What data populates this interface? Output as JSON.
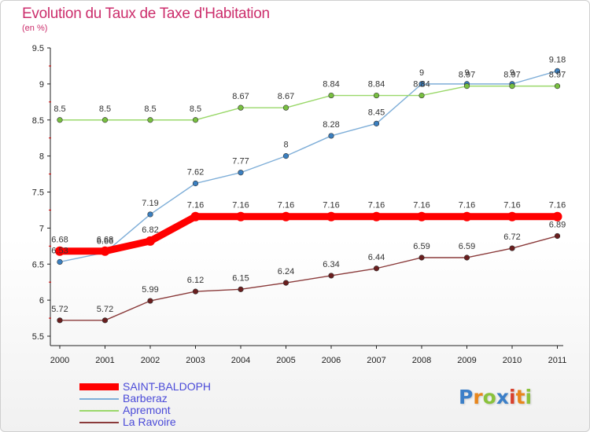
{
  "header": {
    "title": "Evolution du Taux de Taxe d'Habitation",
    "subtitle": "(en %)"
  },
  "brand": {
    "letters": [
      "P",
      "r",
      "o",
      "x",
      "i",
      "t",
      "i"
    ]
  },
  "chart_data": {
    "type": "line",
    "title": "Evolution du Taux de Taxe d'Habitation",
    "subtitle": "(en %)",
    "xlabel": "",
    "ylabel": "",
    "categories": [
      "2000",
      "2001",
      "2002",
      "2003",
      "2004",
      "2005",
      "2006",
      "2007",
      "2008",
      "2009",
      "2010",
      "2011"
    ],
    "ylim": [
      5.5,
      9.5
    ],
    "yticks": [
      "5.5",
      "6",
      "6.5",
      "7",
      "7.5",
      "8",
      "8.5",
      "9",
      "9.5"
    ],
    "grid": false,
    "legend_position": "bottom-left",
    "series": [
      {
        "name": "SAINT-BALDOPH",
        "color": "#ff0000",
        "point_color": "#ff0000",
        "emphasis": true,
        "values": [
          6.68,
          6.68,
          6.82,
          7.16,
          7.16,
          7.16,
          7.16,
          7.16,
          7.16,
          7.16,
          7.16,
          7.16
        ],
        "labels": [
          "6.68",
          "6.68",
          "6.82",
          "7.16",
          "7.16",
          "7.16",
          "7.16",
          "7.16",
          "7.16",
          "7.16",
          "7.16",
          "7.16"
        ]
      },
      {
        "name": "Barberaz",
        "color": "#7eaed8",
        "point_color": "#3a7fc0",
        "emphasis": false,
        "values": [
          6.53,
          6.66,
          7.19,
          7.62,
          7.77,
          8.0,
          8.28,
          8.45,
          9.0,
          9.0,
          9.0,
          9.18
        ],
        "labels": [
          "6.53",
          "6.66",
          "7.19",
          "7.62",
          "7.77",
          "8",
          "8.28",
          "8.45",
          "9",
          "9",
          "9",
          "9.18"
        ]
      },
      {
        "name": "Apremont",
        "color": "#9ad86a",
        "point_color": "#78c040",
        "emphasis": false,
        "values": [
          8.5,
          8.5,
          8.5,
          8.5,
          8.67,
          8.67,
          8.84,
          8.84,
          8.84,
          8.97,
          8.97,
          8.97
        ],
        "labels": [
          "8.5",
          "8.5",
          "8.5",
          "8.5",
          "8.67",
          "8.67",
          "8.84",
          "8.84",
          "8.84",
          "8.97",
          "8.97",
          "8.97"
        ]
      },
      {
        "name": "La Ravoire",
        "color": "#8a3a3a",
        "point_color": "#6a1e1e",
        "emphasis": false,
        "values": [
          5.72,
          5.72,
          5.99,
          6.12,
          6.15,
          6.24,
          6.34,
          6.44,
          6.59,
          6.59,
          6.72,
          6.89
        ],
        "labels": [
          "5.72",
          "5.72",
          "5.99",
          "6.12",
          "6.15",
          "6.24",
          "6.34",
          "6.44",
          "6.59",
          "6.59",
          "6.72",
          "6.89"
        ]
      }
    ]
  }
}
